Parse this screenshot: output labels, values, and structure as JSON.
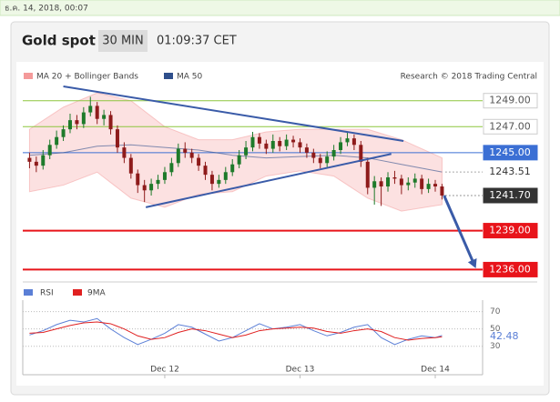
{
  "header": {
    "date": "ธ.ค. 14, 2018, 00:07",
    "title": "Gold spot",
    "timeframe": "30 MIN",
    "time": "01:09:37 CET"
  },
  "chart_data": [
    {
      "type": "candlestick",
      "credit": "Research © 2018 Trading Central",
      "up_color": "#1e7a2a",
      "down_color": "#8e1b1b",
      "x": [
        0,
        1,
        2,
        3,
        4,
        5,
        6,
        7,
        8,
        9,
        10,
        11,
        12,
        13,
        14,
        15,
        16,
        17,
        18,
        19,
        20,
        21,
        22,
        23,
        24,
        25,
        26,
        27,
        28,
        29,
        30,
        31,
        32,
        33,
        34,
        35,
        36,
        37,
        38,
        39,
        40,
        41,
        42,
        43,
        44,
        45,
        46,
        47,
        48,
        49,
        50,
        51,
        52,
        53,
        54,
        55,
        56,
        57,
        58,
        59,
        60,
        61
      ],
      "open": [
        1244.6,
        1244.3,
        1244.0,
        1244.8,
        1245.6,
        1246.2,
        1246.8,
        1247.5,
        1247.2,
        1248.1,
        1248.6,
        1247.6,
        1247.9,
        1246.8,
        1245.4,
        1244.6,
        1243.4,
        1242.5,
        1242.1,
        1242.6,
        1242.9,
        1243.5,
        1244.2,
        1245.3,
        1245.0,
        1244.6,
        1244.0,
        1243.3,
        1242.6,
        1242.9,
        1243.5,
        1244.1,
        1244.8,
        1245.4,
        1246.2,
        1245.7,
        1245.3,
        1245.9,
        1245.5,
        1246.0,
        1245.8,
        1245.4,
        1245.0,
        1244.6,
        1244.2,
        1244.7,
        1245.2,
        1245.8,
        1246.1,
        1245.6,
        1244.3,
        1242.3,
        1242.8,
        1242.4,
        1243.1,
        1243.0,
        1242.5,
        1242.7,
        1243.0,
        1242.2,
        1242.6,
        1242.4
      ],
      "high": [
        1245.0,
        1244.7,
        1245.2,
        1246.0,
        1246.7,
        1247.1,
        1248.0,
        1247.9,
        1248.5,
        1249.3,
        1248.9,
        1248.3,
        1248.2,
        1247.1,
        1245.8,
        1244.9,
        1243.7,
        1242.9,
        1243.0,
        1243.3,
        1243.9,
        1244.6,
        1245.7,
        1245.8,
        1245.3,
        1244.9,
        1244.3,
        1243.6,
        1243.3,
        1243.9,
        1244.5,
        1245.2,
        1245.9,
        1246.6,
        1246.5,
        1246.0,
        1246.4,
        1246.2,
        1246.4,
        1246.3,
        1246.1,
        1245.7,
        1245.3,
        1244.9,
        1245.1,
        1245.6,
        1246.2,
        1246.6,
        1246.4,
        1245.9,
        1244.6,
        1243.2,
        1243.1,
        1243.5,
        1243.6,
        1243.3,
        1243.1,
        1243.4,
        1243.3,
        1243.0,
        1242.9,
        1242.6
      ],
      "low": [
        1243.8,
        1243.5,
        1243.7,
        1244.5,
        1245.3,
        1245.9,
        1246.5,
        1246.8,
        1246.9,
        1247.8,
        1247.2,
        1247.1,
        1246.4,
        1245.0,
        1244.2,
        1243.0,
        1241.9,
        1241.2,
        1241.7,
        1242.2,
        1242.6,
        1243.2,
        1243.9,
        1244.6,
        1244.2,
        1243.6,
        1242.9,
        1242.1,
        1242.3,
        1242.6,
        1243.2,
        1243.8,
        1244.5,
        1245.1,
        1245.3,
        1244.9,
        1245.0,
        1245.1,
        1245.2,
        1245.4,
        1245.0,
        1244.6,
        1244.2,
        1243.8,
        1243.9,
        1244.4,
        1244.9,
        1245.5,
        1245.2,
        1243.9,
        1241.8,
        1241.0,
        1240.9,
        1242.0,
        1242.6,
        1241.8,
        1242.1,
        1242.3,
        1241.8,
        1241.9,
        1242.0,
        1241.4
      ],
      "close": [
        1244.3,
        1244.0,
        1244.8,
        1245.6,
        1246.2,
        1246.8,
        1247.5,
        1247.2,
        1248.1,
        1248.6,
        1247.6,
        1247.9,
        1246.8,
        1245.4,
        1244.6,
        1243.4,
        1242.5,
        1242.1,
        1242.6,
        1242.9,
        1243.5,
        1244.2,
        1245.3,
        1245.0,
        1244.6,
        1244.0,
        1243.3,
        1242.6,
        1242.9,
        1243.5,
        1244.1,
        1244.8,
        1245.4,
        1246.2,
        1245.7,
        1245.3,
        1245.9,
        1245.5,
        1246.0,
        1245.8,
        1245.4,
        1245.0,
        1244.6,
        1244.2,
        1244.7,
        1245.2,
        1245.8,
        1246.1,
        1245.6,
        1244.3,
        1242.3,
        1242.8,
        1242.4,
        1243.1,
        1243.0,
        1242.5,
        1242.7,
        1243.0,
        1242.2,
        1242.6,
        1242.4,
        1241.7
      ],
      "overlays": [
        {
          "name": "MA 20 + Bollinger Bands",
          "color": "#f49a9a",
          "x": [
            0,
            5,
            10,
            15,
            20,
            25,
            30,
            35,
            40,
            45,
            50,
            55,
            61
          ],
          "upper": [
            1246.8,
            1248.5,
            1249.6,
            1249.0,
            1247.0,
            1246.0,
            1246.0,
            1246.6,
            1246.8,
            1246.8,
            1246.8,
            1246.0,
            1244.6
          ],
          "lower": [
            1242.0,
            1242.5,
            1243.5,
            1241.5,
            1240.8,
            1241.8,
            1242.0,
            1243.2,
            1243.6,
            1243.2,
            1241.5,
            1240.5,
            1241.0
          ]
        },
        {
          "name": "MA 50",
          "color": "#2f4f8c",
          "x": [
            0,
            5,
            10,
            15,
            20,
            25,
            30,
            35,
            40,
            45,
            50,
            55,
            61
          ],
          "values": [
            1244.8,
            1245.0,
            1245.5,
            1245.6,
            1245.4,
            1245.2,
            1244.8,
            1244.6,
            1244.7,
            1244.8,
            1244.6,
            1244.1,
            1243.51
          ]
        }
      ],
      "trendlines": [
        {
          "color": "#3a5ba8",
          "x": [
            5,
            55.3
          ],
          "y": [
            1250.1,
            1245.9
          ]
        },
        {
          "color": "#3a5ba8",
          "x": [
            17.2,
            53.5
          ],
          "y": [
            1240.8,
            1244.9
          ]
        }
      ],
      "arrow": {
        "color": "#3a5ba8",
        "x": [
          61.3,
          66
        ],
        "y": [
          1241.7,
          1236.1
        ]
      },
      "levels": [
        {
          "value": 1249,
          "label": "1249.00",
          "color": "#8dc63f",
          "style": "solid",
          "box": "#ffffff",
          "text_color": "#555555"
        },
        {
          "value": 1247,
          "label": "1247.00",
          "color": "#8dc63f",
          "style": "solid",
          "box": "#ffffff",
          "text_color": "#555555"
        },
        {
          "value": 1245,
          "label": "1245.00",
          "color": "#3b6fd4",
          "style": "solid",
          "box": "#3b6fd4",
          "text_color": "#ffffff"
        },
        {
          "value": 1243.51,
          "label": "1243.51",
          "color": "#555555",
          "style": "dotted",
          "text_color": "#333333"
        },
        {
          "value": 1241.7,
          "label": "1241.70",
          "color": "#333333",
          "style": "dotted",
          "box": "#333333",
          "text_color": "#ffffff"
        },
        {
          "value": 1239,
          "label": "1239.00",
          "color": "#e8141a",
          "style": "solid",
          "box": "#e8141a",
          "text_color": "#ffffff"
        },
        {
          "value": 1236,
          "label": "1236.00",
          "color": "#e8141a",
          "style": "solid",
          "box": "#e8141a",
          "text_color": "#ffffff"
        }
      ],
      "xlim": [
        -1,
        67
      ],
      "ylim": [
        1235.4,
        1250.1
      ]
    },
    {
      "type": "line",
      "series": [
        {
          "name": "RSI",
          "color": "#5b7fd6",
          "x": [
            0,
            2,
            4,
            6,
            8,
            10,
            12,
            14,
            16,
            18,
            20,
            22,
            24,
            26,
            28,
            30,
            32,
            34,
            36,
            38,
            40,
            42,
            44,
            46,
            48,
            50,
            52,
            54,
            56,
            58,
            60,
            61
          ],
          "values": [
            43,
            48,
            55,
            60,
            58,
            62,
            50,
            40,
            32,
            38,
            45,
            55,
            52,
            44,
            36,
            40,
            48,
            56,
            50,
            52,
            55,
            48,
            42,
            46,
            52,
            55,
            40,
            32,
            38,
            42,
            40,
            42.48
          ]
        },
        {
          "name": "9MA",
          "color": "#e02020",
          "x": [
            0,
            2,
            4,
            6,
            8,
            10,
            12,
            14,
            16,
            18,
            20,
            22,
            24,
            26,
            28,
            30,
            32,
            34,
            36,
            38,
            40,
            42,
            44,
            46,
            48,
            50,
            52,
            54,
            56,
            58,
            60,
            61
          ],
          "values": [
            45,
            46,
            50,
            54,
            57,
            58,
            56,
            50,
            42,
            38,
            40,
            46,
            50,
            48,
            44,
            40,
            43,
            48,
            50,
            51,
            52,
            51,
            47,
            45,
            48,
            50,
            47,
            40,
            37,
            39,
            40,
            41
          ]
        }
      ],
      "xlim": [
        -1,
        67
      ],
      "ylim": [
        15,
        78
      ],
      "yticks": [
        70,
        50,
        30
      ],
      "xticks": [
        {
          "value": 20,
          "label": "Dec 12"
        },
        {
          "value": 40,
          "label": "Dec 13"
        },
        {
          "value": 60,
          "label": "Dec 14"
        }
      ]
    }
  ]
}
